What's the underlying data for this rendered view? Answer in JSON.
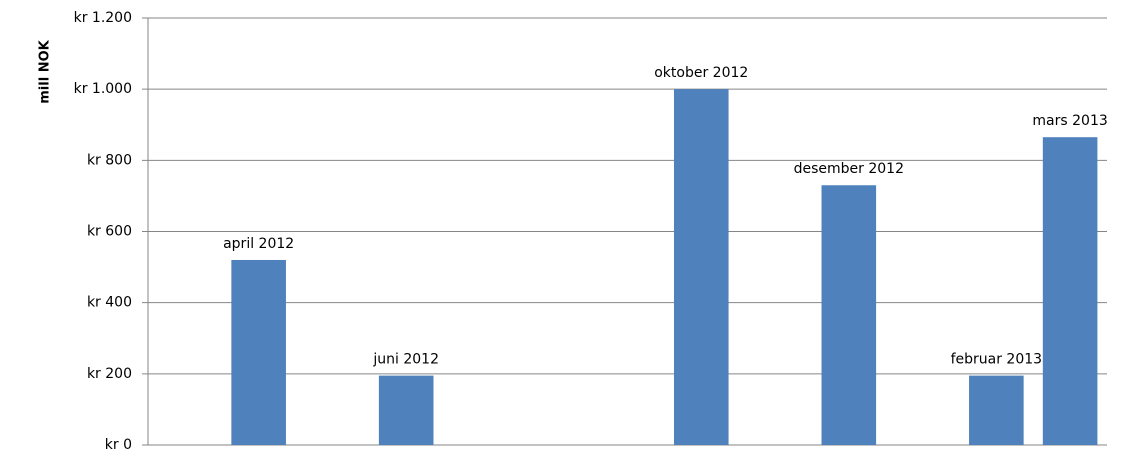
{
  "chart_data": {
    "type": "bar",
    "y_axis_label": "mill NOK",
    "categories": [
      null,
      "april 2012",
      null,
      "juni 2012",
      null,
      null,
      null,
      "oktober 2012",
      null,
      "desember 2012",
      null,
      "februar 2013",
      "mars 2013"
    ],
    "values": [
      null,
      520,
      null,
      195,
      null,
      null,
      null,
      1000,
      null,
      730,
      null,
      195,
      865
    ],
    "color": "#4f81bd",
    "ylim": [
      0,
      1200
    ],
    "yticks": [
      {
        "value": 0,
        "label": "kr 0"
      },
      {
        "value": 200,
        "label": "kr 200"
      },
      {
        "value": 400,
        "label": "kr 400"
      },
      {
        "value": 600,
        "label": "kr 600"
      },
      {
        "value": 800,
        "label": "kr 800"
      },
      {
        "value": 1000,
        "label": "kr 1.000"
      },
      {
        "value": 1200,
        "label": "kr 1.200"
      }
    ],
    "grid": true
  }
}
